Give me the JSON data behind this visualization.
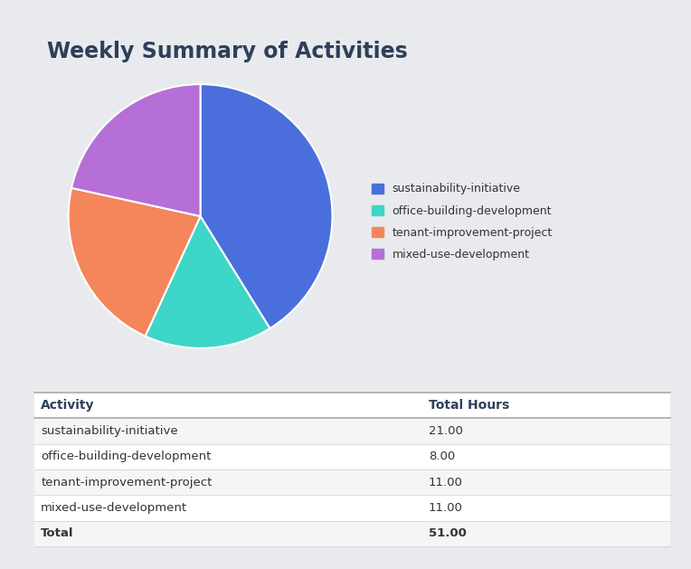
{
  "title": "Weekly Summary of Activities",
  "title_color": "#2d4059",
  "background_color": "#e8eaed",
  "card_color": "#ffffff",
  "activities": [
    "sustainability-initiative",
    "office-building-development",
    "tenant-improvement-project",
    "mixed-use-development"
  ],
  "hours": [
    21.0,
    8.0,
    11.0,
    11.0
  ],
  "total": 51.0,
  "colors": [
    "#4a6fdc",
    "#3dd6c8",
    "#f5855a",
    "#b56fd6"
  ],
  "legend_labels": [
    "sustainability-initiative",
    "office-building-development",
    "tenant-improvement-project",
    "mixed-use-development"
  ],
  "col_activity": "Activity",
  "col_hours": "Total Hours",
  "table_row_colors": [
    "#f5f5f5",
    "#ffffff",
    "#f5f5f5",
    "#ffffff",
    "#f5f5f5"
  ],
  "table_text_color": "#333333",
  "header_bold_color": "#2d4059"
}
